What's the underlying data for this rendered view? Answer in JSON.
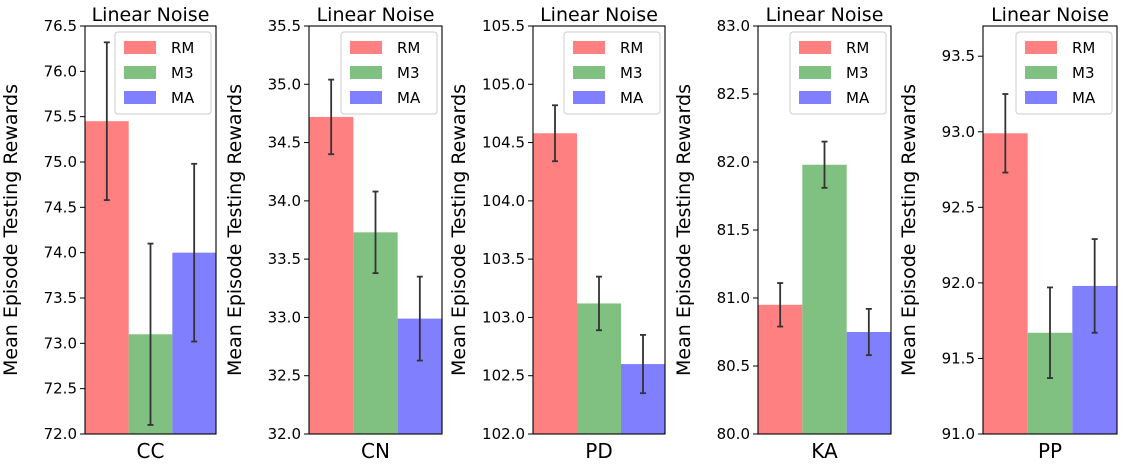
{
  "colors": {
    "RM": "#ff8080",
    "M3": "#80c080",
    "MA": "#8080ff"
  },
  "chart_data": [
    {
      "type": "bar",
      "title": "Linear Noise",
      "ylabel": "Mean Episode Testing Rewards",
      "xlabel": "CC",
      "ylim": [
        72.0,
        76.5
      ],
      "yticks": [
        "72.0",
        "72.5",
        "73.0",
        "73.5",
        "74.0",
        "74.5",
        "75.0",
        "75.5",
        "76.0",
        "76.5"
      ],
      "legend": [
        "RM",
        "M3",
        "MA"
      ],
      "series": [
        {
          "name": "RM",
          "value": 75.45,
          "error": 0.87
        },
        {
          "name": "M3",
          "value": 73.1,
          "error": 1.0
        },
        {
          "name": "MA",
          "value": 74.0,
          "error": 0.98
        }
      ]
    },
    {
      "type": "bar",
      "title": "Linear Noise",
      "ylabel": "Mean Episode Testing Rewards",
      "xlabel": "CN",
      "ylim": [
        32.0,
        35.5
      ],
      "yticks": [
        "32.0",
        "32.5",
        "33.0",
        "33.5",
        "34.0",
        "34.5",
        "35.0",
        "35.5"
      ],
      "legend": [
        "RM",
        "M3",
        "MA"
      ],
      "series": [
        {
          "name": "RM",
          "value": 34.72,
          "error": 0.32
        },
        {
          "name": "M3",
          "value": 33.73,
          "error": 0.35
        },
        {
          "name": "MA",
          "value": 32.99,
          "error": 0.36
        }
      ]
    },
    {
      "type": "bar",
      "title": "Linear Noise",
      "ylabel": "Mean Episode Testing Rewards",
      "xlabel": "PD",
      "ylim": [
        102.0,
        105.5
      ],
      "yticks": [
        "102.0",
        "102.5",
        "103.0",
        "103.5",
        "104.0",
        "104.5",
        "105.0",
        "105.5"
      ],
      "legend": [
        "RM",
        "M3",
        "MA"
      ],
      "series": [
        {
          "name": "RM",
          "value": 104.58,
          "error": 0.24
        },
        {
          "name": "M3",
          "value": 103.12,
          "error": 0.23
        },
        {
          "name": "MA",
          "value": 102.6,
          "error": 0.25
        }
      ]
    },
    {
      "type": "bar",
      "title": "Linear Noise",
      "ylabel": "Mean Episode Testing Rewards",
      "xlabel": "KA",
      "ylim": [
        80.0,
        83.0
      ],
      "yticks": [
        "80.0",
        "80.5",
        "81.0",
        "81.5",
        "82.0",
        "82.5",
        "83.0"
      ],
      "legend": [
        "RM",
        "M3",
        "MA"
      ],
      "series": [
        {
          "name": "RM",
          "value": 80.95,
          "error": 0.16
        },
        {
          "name": "M3",
          "value": 81.98,
          "error": 0.17
        },
        {
          "name": "MA",
          "value": 80.75,
          "error": 0.17
        }
      ]
    },
    {
      "type": "bar",
      "title": "Linear Noise",
      "ylabel": "Mean Episode Testing Rewards",
      "xlabel": "PP",
      "ylim": [
        91.0,
        93.7
      ],
      "yticks": [
        "91.0",
        "91.5",
        "92.0",
        "92.5",
        "93.0",
        "93.5"
      ],
      "legend": [
        "RM",
        "M3",
        "MA"
      ],
      "series": [
        {
          "name": "RM",
          "value": 92.99,
          "error": 0.26
        },
        {
          "name": "M3",
          "value": 91.67,
          "error": 0.3
        },
        {
          "name": "MA",
          "value": 91.98,
          "error": 0.31
        }
      ]
    }
  ]
}
